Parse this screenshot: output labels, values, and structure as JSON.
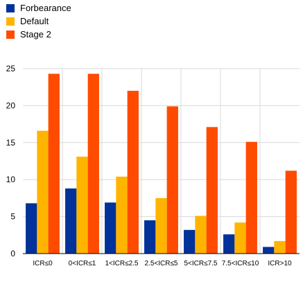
{
  "chart_data": {
    "type": "bar",
    "categories": [
      "ICR≤0",
      "0<ICR≤1",
      "1<ICR≤2.5",
      "2.5<ICR≤5",
      "5<ICR≤7.5",
      "7.5<ICR≤10",
      "ICR>10"
    ],
    "series": [
      {
        "name": "Forbearance",
        "color": "#003299",
        "values": [
          6.8,
          8.8,
          6.9,
          4.5,
          3.2,
          2.6,
          0.9
        ]
      },
      {
        "name": "Default",
        "color": "#FFB400",
        "values": [
          16.6,
          13.1,
          10.4,
          7.5,
          5.1,
          4.2,
          1.7
        ]
      },
      {
        "name": "Stage 2",
        "color": "#FF4B00",
        "values": [
          24.3,
          24.3,
          22.0,
          19.9,
          17.1,
          15.1,
          11.2
        ]
      }
    ],
    "title": "",
    "xlabel": "",
    "ylabel": "",
    "ylim": [
      0,
      25
    ],
    "yticks": [
      0,
      5,
      10,
      15,
      20,
      25
    ],
    "grid": true,
    "legend_position": "top-left"
  }
}
